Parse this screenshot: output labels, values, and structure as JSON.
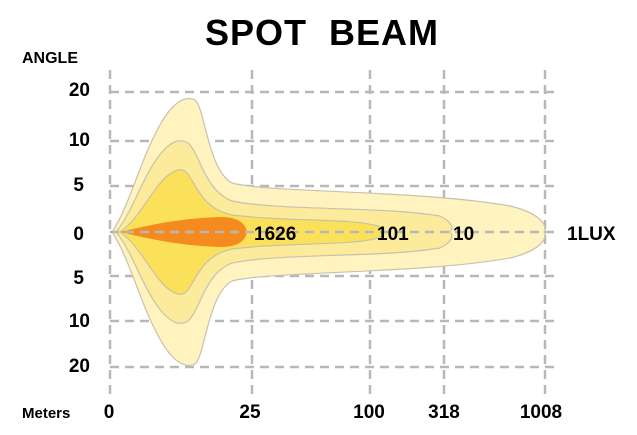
{
  "chart_data": {
    "type": "area",
    "title": "SPOT  BEAM",
    "ylabel": "ANGLE",
    "xlabel": "Meters",
    "y_ticks": [
      "20",
      "10",
      "5",
      "0",
      "5",
      "10",
      "20"
    ],
    "x_ticks": [
      "0",
      "25",
      "100",
      "318",
      "1008"
    ],
    "grid": true,
    "series": [
      {
        "name": "1LUX",
        "max_distance": 1008,
        "max_angle": 20
      },
      {
        "name": "10",
        "max_distance": 318,
        "max_angle": 10
      },
      {
        "name": "101",
        "max_distance": 100,
        "max_angle": 7
      },
      {
        "name": "1626",
        "max_distance": 25,
        "max_angle": 1
      }
    ],
    "colors": {
      "outer": "#fff3c0",
      "mid": "#fbeb9a",
      "inner": "#fbe05a",
      "core": "#f58b1f",
      "outline": "#c8c2ad",
      "grid": "#b8b8b8"
    }
  }
}
